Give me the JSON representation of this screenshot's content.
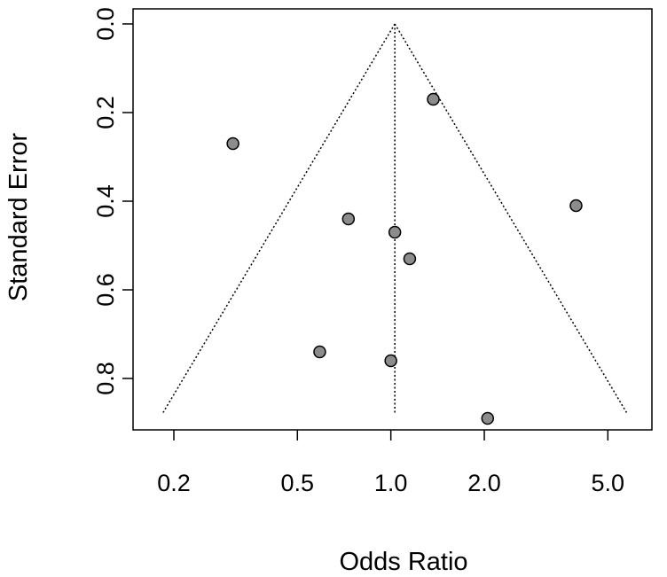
{
  "chart_data": {
    "type": "scatter",
    "title": "",
    "xlabel": "Odds Ratio",
    "ylabel": "Standard Error",
    "x_scale": "log",
    "y_reversed": true,
    "xlim": [
      0.18,
      6.2
    ],
    "ylim": [
      0,
      0.9
    ],
    "x_ticks": [
      {
        "value": 0.2,
        "label": "0.2"
      },
      {
        "value": 0.5,
        "label": "0.5"
      },
      {
        "value": 1.0,
        "label": "1.0"
      },
      {
        "value": 2.0,
        "label": "2.0"
      },
      {
        "value": 5.0,
        "label": "5.0"
      }
    ],
    "y_ticks": [
      {
        "value": 0.0,
        "label": "0.0"
      },
      {
        "value": 0.2,
        "label": "0.2"
      },
      {
        "value": 0.4,
        "label": "0.4"
      },
      {
        "value": 0.6,
        "label": "0.6"
      },
      {
        "value": 0.8,
        "label": "0.8"
      }
    ],
    "pooled_estimate": 1.03,
    "funnel_limit_se": 0.88,
    "points": [
      {
        "x": 1.37,
        "y": 0.17
      },
      {
        "x": 0.31,
        "y": 0.27
      },
      {
        "x": 3.95,
        "y": 0.41
      },
      {
        "x": 0.73,
        "y": 0.44
      },
      {
        "x": 1.03,
        "y": 0.47
      },
      {
        "x": 1.15,
        "y": 0.53
      },
      {
        "x": 0.59,
        "y": 0.74
      },
      {
        "x": 1.0,
        "y": 0.76
      },
      {
        "x": 2.05,
        "y": 0.89
      }
    ],
    "grid": false,
    "legend": "none",
    "colors": {
      "point_fill": "#8c8c8c",
      "point_stroke": "#000000",
      "line": "#000000"
    }
  }
}
